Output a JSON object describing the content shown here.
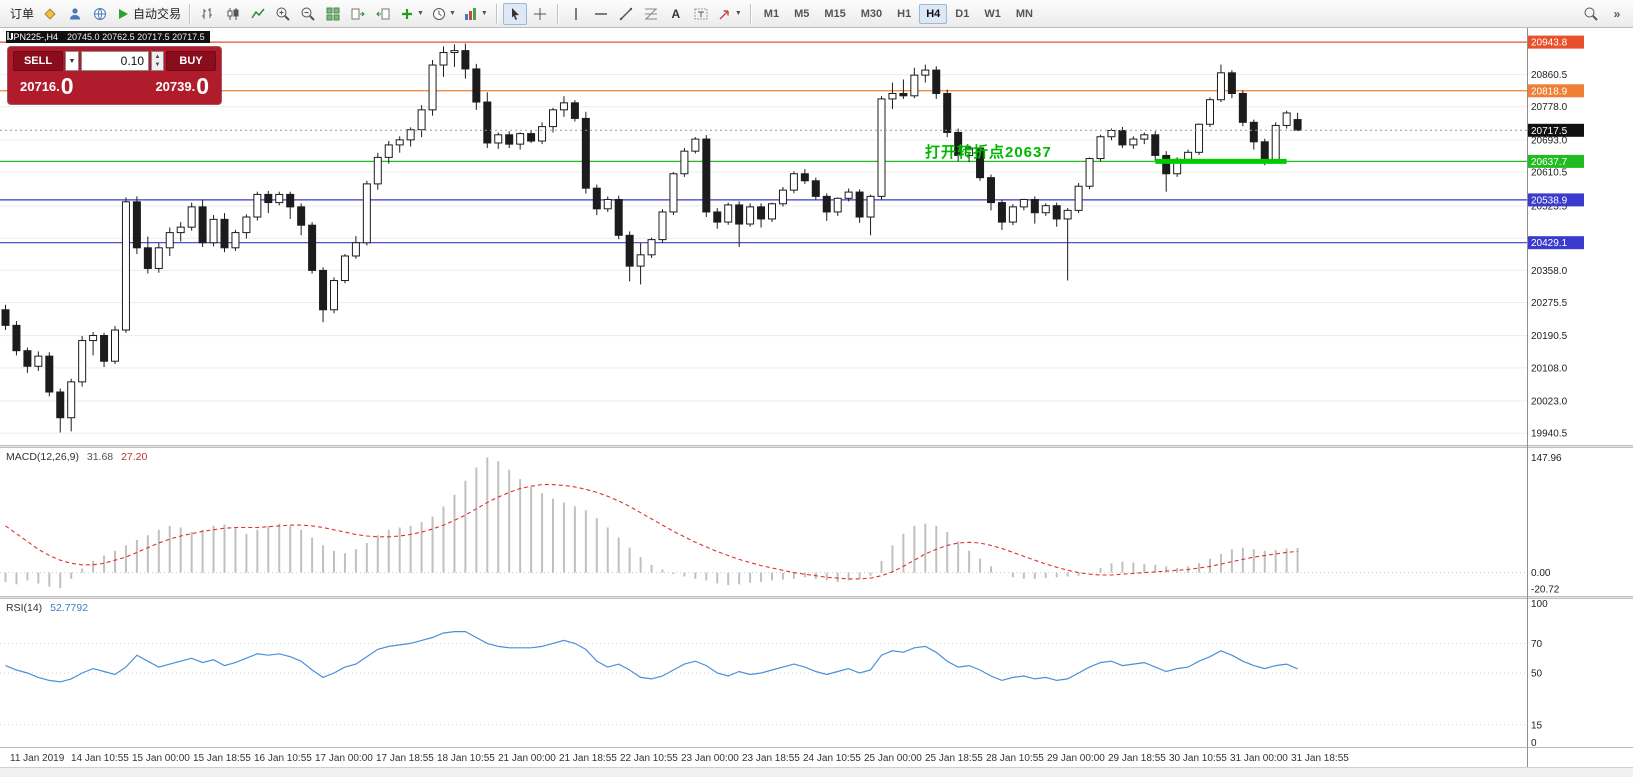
{
  "toolbar": {
    "order_label": "订单",
    "autotrading_label": "自动交易",
    "letter_a": "A",
    "timeframes": [
      "M1",
      "M5",
      "M15",
      "M30",
      "H1",
      "H4",
      "D1",
      "W1",
      "MN"
    ],
    "active_timeframe": "H4"
  },
  "chart_window": {
    "symbol_tf": "JPN225-,H4",
    "ohlc": "20745.0 20762.5 20717.5 20717.5"
  },
  "one_click": {
    "sell_label": "SELL",
    "buy_label": "BUY",
    "volume": "0.10",
    "sell_price": "20716.",
    "sell_price_big": "0",
    "buy_price": "20739.",
    "buy_price_big": "0"
  },
  "chart_data": {
    "type": "candlestick",
    "symbol": "JPN225-",
    "timeframe": "H4",
    "price_axis": {
      "min": 19910,
      "max": 20980,
      "gridlines": [
        20860.5,
        20778.0,
        20693.0,
        20610.5,
        20523.5,
        20440.5,
        20358.0,
        20275.5,
        20190.5,
        20108.0,
        20023.0,
        19940.5
      ],
      "labels": [
        20860.5,
        20778.0,
        20693.0,
        20610.5,
        20523.5,
        20358.0,
        20275.5,
        20190.5,
        20108.0,
        20023.0,
        19940.5
      ]
    },
    "current_price": {
      "value": 20717.5,
      "label": "20717.5"
    },
    "hlines": [
      {
        "price": 20943.8,
        "label": "20943.8",
        "color": "#e8502a"
      },
      {
        "price": 20818.9,
        "label": "20818.9",
        "color": "#ef7f36"
      },
      {
        "price": 20637.7,
        "label": "20637.7",
        "color": "#22bb22"
      },
      {
        "price": 20538.9,
        "label": "20538.9",
        "color": "#3a3acc"
      },
      {
        "price": 20429.1,
        "label": "20429.1",
        "color": "#3a3acc"
      }
    ],
    "green_segment": {
      "price": 20637.7,
      "from_candle": 105,
      "to_candle": 117,
      "color": "#00cc00",
      "width": 5
    },
    "annotation": {
      "text": "打开转折点20637",
      "color": "#00b800"
    },
    "candles": [
      [
        20257,
        20270,
        20205,
        20217
      ],
      [
        20217,
        20228,
        20140,
        20152
      ],
      [
        20152,
        20160,
        20095,
        20112
      ],
      [
        20112,
        20150,
        20100,
        20138
      ],
      [
        20138,
        20148,
        20035,
        20046
      ],
      [
        20046,
        20055,
        19942,
        19980
      ],
      [
        19980,
        20080,
        19945,
        20072
      ],
      [
        20072,
        20190,
        20060,
        20178
      ],
      [
        20178,
        20200,
        20140,
        20191
      ],
      [
        20191,
        20198,
        20110,
        20125
      ],
      [
        20125,
        20215,
        20118,
        20205
      ],
      [
        20205,
        20545,
        20198,
        20534
      ],
      [
        20534,
        20548,
        20400,
        20416
      ],
      [
        20416,
        20445,
        20350,
        20363
      ],
      [
        20363,
        20428,
        20352,
        20416
      ],
      [
        20416,
        20468,
        20395,
        20455
      ],
      [
        20455,
        20482,
        20432,
        20469
      ],
      [
        20469,
        20532,
        20460,
        20521
      ],
      [
        20521,
        20540,
        20418,
        20429
      ],
      [
        20429,
        20500,
        20420,
        20489
      ],
      [
        20489,
        20505,
        20405,
        20416
      ],
      [
        20416,
        20462,
        20408,
        20455
      ],
      [
        20455,
        20502,
        20440,
        20495
      ],
      [
        20495,
        20560,
        20486,
        20553
      ],
      [
        20553,
        20562,
        20505,
        20532
      ],
      [
        20532,
        20560,
        20525,
        20553
      ],
      [
        20553,
        20560,
        20490,
        20521
      ],
      [
        20521,
        20530,
        20448,
        20474
      ],
      [
        20474,
        20482,
        20350,
        20358
      ],
      [
        20358,
        20366,
        20225,
        20257
      ],
      [
        20257,
        20340,
        20248,
        20332
      ],
      [
        20332,
        20400,
        20325,
        20395
      ],
      [
        20395,
        20446,
        20388,
        20429
      ],
      [
        20429,
        20588,
        20422,
        20580
      ],
      [
        20580,
        20660,
        20565,
        20648
      ],
      [
        20648,
        20690,
        20632,
        20680
      ],
      [
        20680,
        20702,
        20660,
        20693
      ],
      [
        20693,
        20725,
        20676,
        20719
      ],
      [
        20719,
        20782,
        20700,
        20770
      ],
      [
        20770,
        20898,
        20755,
        20885
      ],
      [
        20885,
        20933,
        20855,
        20917
      ],
      [
        20917,
        20938,
        20880,
        20922
      ],
      [
        20922,
        20940,
        20850,
        20875
      ],
      [
        20875,
        20888,
        20770,
        20790
      ],
      [
        20790,
        20815,
        20672,
        20685
      ],
      [
        20685,
        20712,
        20670,
        20706
      ],
      [
        20706,
        20715,
        20672,
        20682
      ],
      [
        20682,
        20712,
        20668,
        20709
      ],
      [
        20709,
        20718,
        20685,
        20690
      ],
      [
        20690,
        20738,
        20682,
        20727
      ],
      [
        20727,
        20775,
        20712,
        20770
      ],
      [
        20770,
        20805,
        20752,
        20788
      ],
      [
        20788,
        20795,
        20740,
        20748
      ],
      [
        20748,
        20765,
        20555,
        20569
      ],
      [
        20569,
        20578,
        20500,
        20516
      ],
      [
        20516,
        20548,
        20508,
        20540
      ],
      [
        20540,
        20550,
        20438,
        20448
      ],
      [
        20448,
        20458,
        20330,
        20369
      ],
      [
        20369,
        20428,
        20322,
        20398
      ],
      [
        20398,
        20442,
        20390,
        20437
      ],
      [
        20437,
        20515,
        20430,
        20508
      ],
      [
        20508,
        20610,
        20500,
        20606
      ],
      [
        20606,
        20672,
        20598,
        20664
      ],
      [
        20664,
        20700,
        20658,
        20695
      ],
      [
        20695,
        20705,
        20495,
        20508
      ],
      [
        20508,
        20518,
        20465,
        20482
      ],
      [
        20482,
        20532,
        20475,
        20526
      ],
      [
        20526,
        20535,
        20418,
        20477
      ],
      [
        20477,
        20530,
        20470,
        20521
      ],
      [
        20521,
        20530,
        20468,
        20490
      ],
      [
        20490,
        20532,
        20482,
        20529
      ],
      [
        20529,
        20572,
        20522,
        20564
      ],
      [
        20564,
        20612,
        20556,
        20606
      ],
      [
        20606,
        20618,
        20580,
        20588
      ],
      [
        20588,
        20596,
        20540,
        20548
      ],
      [
        20548,
        20556,
        20485,
        20508
      ],
      [
        20508,
        20545,
        20498,
        20543
      ],
      [
        20543,
        20568,
        20535,
        20559
      ],
      [
        20559,
        20566,
        20480,
        20495
      ],
      [
        20495,
        20552,
        20448,
        20548
      ],
      [
        20548,
        20805,
        20540,
        20798
      ],
      [
        20798,
        20840,
        20772,
        20812
      ],
      [
        20812,
        20848,
        20798,
        20806
      ],
      [
        20806,
        20878,
        20800,
        20859
      ],
      [
        20859,
        20886,
        20840,
        20872
      ],
      [
        20872,
        20882,
        20798,
        20812
      ],
      [
        20812,
        20822,
        20700,
        20712
      ],
      [
        20712,
        20722,
        20638,
        20653
      ],
      [
        20653,
        20678,
        20636,
        20672
      ],
      [
        20672,
        20680,
        20588,
        20596
      ],
      [
        20596,
        20604,
        20512,
        20532
      ],
      [
        20532,
        20540,
        20462,
        20482
      ],
      [
        20482,
        20528,
        20474,
        20521
      ],
      [
        20521,
        20542,
        20512,
        20540
      ],
      [
        20540,
        20548,
        20478,
        20506
      ],
      [
        20506,
        20530,
        20498,
        20524
      ],
      [
        20524,
        20532,
        20470,
        20490
      ],
      [
        20490,
        20518,
        20332,
        20512
      ],
      [
        20512,
        20582,
        20505,
        20574
      ],
      [
        20574,
        20648,
        20566,
        20645
      ],
      [
        20645,
        20706,
        20638,
        20701
      ],
      [
        20701,
        20722,
        20692,
        20717
      ],
      [
        20717,
        20726,
        20672,
        20680
      ],
      [
        20680,
        20702,
        20670,
        20695
      ],
      [
        20695,
        20712,
        20682,
        20706
      ],
      [
        20706,
        20715,
        20640,
        20653
      ],
      [
        20653,
        20664,
        20560,
        20606
      ],
      [
        20606,
        20648,
        20598,
        20643
      ],
      [
        20643,
        20668,
        20636,
        20661
      ],
      [
        20661,
        20735,
        20654,
        20733
      ],
      [
        20733,
        20802,
        20726,
        20796
      ],
      [
        20796,
        20886,
        20790,
        20865
      ],
      [
        20865,
        20872,
        20800,
        20812
      ],
      [
        20812,
        20820,
        20728,
        20738
      ],
      [
        20738,
        20745,
        20668,
        20688
      ],
      [
        20688,
        20696,
        20628,
        20640
      ],
      [
        20640,
        20738,
        20632,
        20730
      ],
      [
        20730,
        20768,
        20722,
        20762
      ],
      [
        20745,
        20762.5,
        20717.5,
        20717.5
      ]
    ],
    "macd": {
      "label": "MACD(12,26,9)",
      "value": "31.68",
      "signal_value": "27.20",
      "axis_labels": [
        "147.96",
        "0.00",
        "-20.72"
      ],
      "axis_values": [
        147.96,
        0,
        -20.72
      ],
      "max": 160,
      "min": -30,
      "colors": {
        "histogram": "#c0c0c0",
        "signal": "#e03030"
      },
      "histogram": [
        -12,
        -15,
        -10,
        -14,
        -18,
        -20,
        -8,
        5,
        15,
        22,
        28,
        35,
        42,
        48,
        55,
        60,
        58,
        52,
        55,
        60,
        62,
        58,
        50,
        55,
        60,
        63,
        60,
        55,
        45,
        35,
        28,
        25,
        30,
        38,
        48,
        55,
        58,
        60,
        65,
        72,
        85,
        100,
        118,
        135,
        148,
        143,
        132,
        120,
        110,
        102,
        95,
        90,
        85,
        80,
        70,
        58,
        45,
        32,
        20,
        10,
        4,
        -2,
        -5,
        -8,
        -10,
        -14,
        -16,
        -15,
        -13,
        -12,
        -10,
        -9,
        -8,
        -6,
        -8,
        -10,
        -12,
        -10,
        -8,
        -4,
        15,
        35,
        50,
        60,
        63,
        60,
        52,
        40,
        28,
        18,
        8,
        0,
        -6,
        -8,
        -8,
        -7,
        -6,
        -5,
        -4,
        0,
        6,
        12,
        14,
        13,
        11,
        10,
        8,
        6,
        8,
        12,
        18,
        24,
        30,
        32,
        30,
        28,
        29,
        31,
        31.68
      ],
      "signal": [
        60,
        50,
        40,
        30,
        22,
        16,
        12,
        10,
        10,
        12,
        16,
        20,
        26,
        32,
        38,
        43,
        47,
        50,
        53,
        55,
        57,
        58,
        58,
        58,
        59,
        60,
        61,
        61,
        60,
        58,
        55,
        52,
        49,
        47,
        46,
        46,
        47,
        49,
        52,
        56,
        61,
        67,
        74,
        82,
        90,
        97,
        103,
        108,
        111,
        113,
        113,
        112,
        110,
        107,
        103,
        98,
        92,
        85,
        77,
        69,
        61,
        53,
        46,
        39,
        33,
        27,
        22,
        17,
        13,
        9,
        6,
        3,
        0,
        -2,
        -4,
        -6,
        -7,
        -8,
        -8,
        -7,
        -4,
        1,
        8,
        16,
        24,
        30,
        35,
        38,
        39,
        38,
        35,
        31,
        26,
        21,
        16,
        11,
        7,
        3,
        0,
        -2,
        -3,
        -3,
        -2,
        -1,
        0,
        1,
        2,
        3,
        4,
        6,
        8,
        11,
        14,
        17,
        20,
        22,
        24,
        26,
        27.2
      ]
    },
    "rsi": {
      "label": "RSI(14)",
      "value": "52.7792",
      "levels": [
        100,
        70,
        50,
        15,
        0
      ],
      "color": "#4a90d9",
      "series": [
        55,
        52,
        50,
        47,
        45,
        44,
        46,
        50,
        53,
        51,
        49,
        54,
        62,
        58,
        54,
        56,
        58,
        60,
        57,
        59,
        55,
        57,
        60,
        63,
        62,
        63,
        61,
        58,
        52,
        47,
        50,
        54,
        56,
        61,
        66,
        68,
        69,
        70,
        72,
        74,
        77,
        78,
        78,
        74,
        70,
        68,
        67,
        67,
        67,
        68,
        70,
        72,
        70,
        66,
        58,
        54,
        56,
        52,
        47,
        46,
        48,
        52,
        56,
        58,
        55,
        50,
        48,
        51,
        49,
        50,
        52,
        54,
        56,
        54,
        51,
        49,
        51,
        53,
        50,
        52,
        62,
        65,
        64,
        67,
        68,
        64,
        58,
        54,
        55,
        52,
        48,
        45,
        47,
        48,
        46,
        47,
        45,
        46,
        50,
        54,
        57,
        58,
        55,
        56,
        57,
        54,
        51,
        53,
        54,
        58,
        61,
        65,
        62,
        58,
        55,
        53,
        55,
        56,
        52.78
      ]
    },
    "time_labels": [
      "11 Jan 2019",
      "14 Jan 10:55",
      "15 Jan 00:00",
      "15 Jan 18:55",
      "16 Jan 10:55",
      "17 Jan 00:00",
      "17 Jan 18:55",
      "18 Jan 10:55",
      "21 Jan 00:00",
      "21 Jan 18:55",
      "22 Jan 10:55",
      "23 Jan 00:00",
      "23 Jan 18:55",
      "24 Jan 10:55",
      "25 Jan 00:00",
      "25 Jan 18:55",
      "28 Jan 10:55",
      "29 Jan 00:00",
      "29 Jan 18:55",
      "30 Jan 10:55",
      "31 Jan 00:00",
      "31 Jan 18:55"
    ]
  }
}
